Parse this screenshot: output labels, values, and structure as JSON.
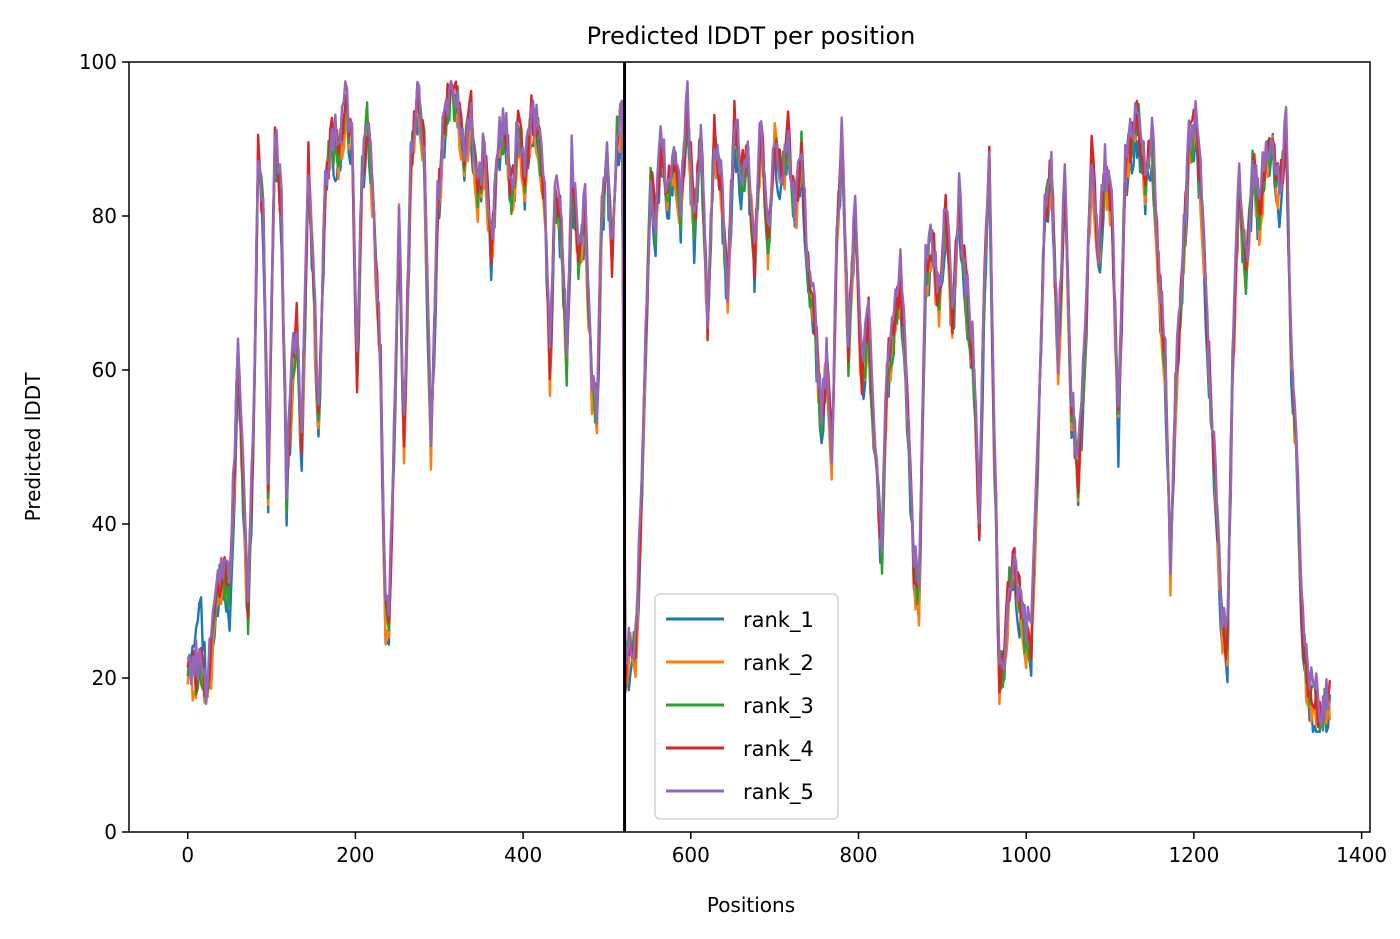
{
  "chart_data": {
    "type": "line",
    "title": "Predicted lDDT per position",
    "xlabel": "Positions",
    "ylabel": "Predicted lDDT",
    "xlim": [
      -70,
      1410
    ],
    "ylim": [
      0,
      100
    ],
    "xticks": [
      "0",
      "200",
      "400",
      "600",
      "800",
      "1000",
      "1200",
      "1400"
    ],
    "yticks": [
      "0",
      "20",
      "40",
      "60",
      "80",
      "100"
    ],
    "legend_position": "lower-center",
    "grid": false,
    "vline": {
      "x": 521,
      "color": "#000000"
    },
    "key_points": [
      [
        0,
        21
      ],
      [
        8,
        20
      ],
      [
        15,
        22
      ],
      [
        22,
        18
      ],
      [
        28,
        22
      ],
      [
        35,
        30
      ],
      [
        42,
        34
      ],
      [
        50,
        30
      ],
      [
        56,
        48
      ],
      [
        60,
        64
      ],
      [
        66,
        45
      ],
      [
        72,
        28
      ],
      [
        78,
        50
      ],
      [
        84,
        88
      ],
      [
        90,
        80
      ],
      [
        96,
        45
      ],
      [
        104,
        90
      ],
      [
        112,
        80
      ],
      [
        118,
        44
      ],
      [
        124,
        58
      ],
      [
        130,
        66
      ],
      [
        136,
        50
      ],
      [
        144,
        86
      ],
      [
        150,
        72
      ],
      [
        156,
        52
      ],
      [
        164,
        84
      ],
      [
        172,
        90
      ],
      [
        180,
        88
      ],
      [
        188,
        94
      ],
      [
        196,
        90
      ],
      [
        202,
        58
      ],
      [
        208,
        85
      ],
      [
        214,
        92
      ],
      [
        222,
        80
      ],
      [
        230,
        60
      ],
      [
        236,
        28
      ],
      [
        240,
        26
      ],
      [
        246,
        50
      ],
      [
        252,
        80
      ],
      [
        258,
        50
      ],
      [
        266,
        86
      ],
      [
        274,
        95
      ],
      [
        282,
        88
      ],
      [
        290,
        50
      ],
      [
        298,
        80
      ],
      [
        306,
        92
      ],
      [
        314,
        96
      ],
      [
        322,
        94
      ],
      [
        330,
        88
      ],
      [
        338,
        93
      ],
      [
        346,
        82
      ],
      [
        354,
        88
      ],
      [
        362,
        75
      ],
      [
        370,
        88
      ],
      [
        378,
        92
      ],
      [
        386,
        82
      ],
      [
        394,
        90
      ],
      [
        402,
        85
      ],
      [
        410,
        93
      ],
      [
        418,
        90
      ],
      [
        426,
        82
      ],
      [
        432,
        60
      ],
      [
        438,
        82
      ],
      [
        446,
        78
      ],
      [
        452,
        60
      ],
      [
        458,
        86
      ],
      [
        466,
        74
      ],
      [
        474,
        80
      ],
      [
        482,
        58
      ],
      [
        488,
        54
      ],
      [
        494,
        80
      ],
      [
        500,
        88
      ],
      [
        506,
        74
      ],
      [
        512,
        90
      ],
      [
        518,
        93
      ],
      [
        522,
        20
      ],
      [
        528,
        24
      ],
      [
        534,
        23
      ],
      [
        540,
        38
      ],
      [
        546,
        62
      ],
      [
        552,
        84
      ],
      [
        558,
        78
      ],
      [
        564,
        90
      ],
      [
        572,
        82
      ],
      [
        580,
        88
      ],
      [
        588,
        80
      ],
      [
        596,
        94
      ],
      [
        604,
        78
      ],
      [
        612,
        90
      ],
      [
        620,
        66
      ],
      [
        628,
        90
      ],
      [
        636,
        84
      ],
      [
        644,
        70
      ],
      [
        652,
        92
      ],
      [
        660,
        84
      ],
      [
        668,
        88
      ],
      [
        676,
        74
      ],
      [
        684,
        92
      ],
      [
        692,
        76
      ],
      [
        700,
        90
      ],
      [
        708,
        84
      ],
      [
        716,
        90
      ],
      [
        724,
        80
      ],
      [
        732,
        88
      ],
      [
        740,
        72
      ],
      [
        748,
        66
      ],
      [
        756,
        52
      ],
      [
        762,
        62
      ],
      [
        768,
        48
      ],
      [
        774,
        76
      ],
      [
        780,
        90
      ],
      [
        788,
        62
      ],
      [
        796,
        80
      ],
      [
        804,
        58
      ],
      [
        812,
        66
      ],
      [
        820,
        48
      ],
      [
        828,
        36
      ],
      [
        834,
        60
      ],
      [
        842,
        64
      ],
      [
        850,
        72
      ],
      [
        858,
        55
      ],
      [
        866,
        34
      ],
      [
        872,
        30
      ],
      [
        880,
        72
      ],
      [
        888,
        76
      ],
      [
        896,
        68
      ],
      [
        904,
        80
      ],
      [
        912,
        66
      ],
      [
        920,
        82
      ],
      [
        928,
        70
      ],
      [
        936,
        62
      ],
      [
        944,
        40
      ],
      [
        950,
        70
      ],
      [
        956,
        86
      ],
      [
        962,
        50
      ],
      [
        968,
        20
      ],
      [
        974,
        22
      ],
      [
        980,
        32
      ],
      [
        986,
        34
      ],
      [
        994,
        28
      ],
      [
        1000,
        25
      ],
      [
        1006,
        24
      ],
      [
        1014,
        50
      ],
      [
        1022,
        80
      ],
      [
        1030,
        86
      ],
      [
        1038,
        60
      ],
      [
        1046,
        84
      ],
      [
        1054,
        55
      ],
      [
        1062,
        46
      ],
      [
        1070,
        62
      ],
      [
        1078,
        88
      ],
      [
        1086,
        74
      ],
      [
        1094,
        86
      ],
      [
        1102,
        80
      ],
      [
        1110,
        52
      ],
      [
        1118,
        86
      ],
      [
        1126,
        90
      ],
      [
        1134,
        92
      ],
      [
        1142,
        84
      ],
      [
        1150,
        90
      ],
      [
        1158,
        72
      ],
      [
        1166,
        60
      ],
      [
        1172,
        34
      ],
      [
        1178,
        56
      ],
      [
        1186,
        72
      ],
      [
        1194,
        88
      ],
      [
        1202,
        92
      ],
      [
        1210,
        80
      ],
      [
        1218,
        60
      ],
      [
        1226,
        44
      ],
      [
        1234,
        26
      ],
      [
        1240,
        24
      ],
      [
        1246,
        60
      ],
      [
        1254,
        84
      ],
      [
        1262,
        72
      ],
      [
        1270,
        86
      ],
      [
        1278,
        80
      ],
      [
        1286,
        88
      ],
      [
        1294,
        90
      ],
      [
        1302,
        82
      ],
      [
        1310,
        90
      ],
      [
        1316,
        62
      ],
      [
        1322,
        50
      ],
      [
        1328,
        30
      ],
      [
        1334,
        20
      ],
      [
        1340,
        17
      ],
      [
        1346,
        16
      ],
      [
        1352,
        15
      ],
      [
        1358,
        16
      ],
      [
        1362,
        17
      ]
    ],
    "series": [
      {
        "name": "rank_1",
        "color": "#1f77b4"
      },
      {
        "name": "rank_2",
        "color": "#ff7f0e"
      },
      {
        "name": "rank_3",
        "color": "#2ca02c"
      },
      {
        "name": "rank_4",
        "color": "#d62728"
      },
      {
        "name": "rank_5",
        "color": "#9467bd"
      }
    ]
  }
}
